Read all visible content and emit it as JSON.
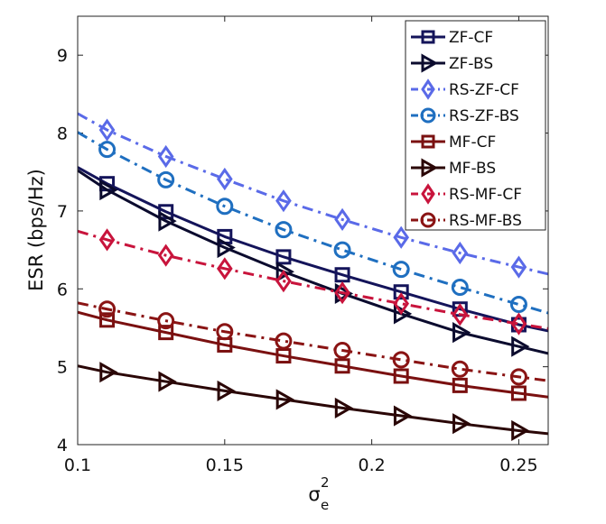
{
  "chart_data": {
    "type": "line",
    "title": "",
    "xlabel_main": "σ",
    "xlabel_sup": "2",
    "xlabel_sub": "e",
    "ylabel": "ESR (bps/Hz)",
    "xlim": [
      0.1,
      0.26
    ],
    "ylim": [
      4,
      9.5
    ],
    "xticks": [
      0.1,
      0.15,
      0.2,
      0.25
    ],
    "xtick_labels": [
      "0.1",
      "0.15",
      "0.2",
      "0.25"
    ],
    "yticks": [
      4,
      5,
      6,
      7,
      8,
      9
    ],
    "ytick_labels": [
      "4",
      "5",
      "6",
      "7",
      "8",
      "9"
    ],
    "legend_position": "top-right",
    "x": [
      0.1,
      0.11,
      0.13,
      0.15,
      0.17,
      0.19,
      0.21,
      0.23,
      0.25,
      0.26
    ],
    "marker_x": [
      0.11,
      0.13,
      0.15,
      0.17,
      0.19,
      0.21,
      0.23,
      0.25
    ],
    "series": [
      {
        "name": "ZF-CF",
        "color": "#14145a",
        "dash": "solid",
        "marker": "square",
        "values": [
          7.56,
          7.35,
          6.99,
          6.67,
          6.41,
          6.18,
          5.96,
          5.74,
          5.54,
          5.46
        ]
      },
      {
        "name": "ZF-BS",
        "color": "#0b0b2e",
        "dash": "solid",
        "marker": "triangle-right",
        "values": [
          7.52,
          7.27,
          6.87,
          6.53,
          6.22,
          5.94,
          5.68,
          5.44,
          5.26,
          5.17
        ]
      },
      {
        "name": "RS-ZF-CF",
        "color": "#5a6ae8",
        "dash": "dashdot",
        "marker": "diamond",
        "values": [
          8.25,
          8.04,
          7.7,
          7.41,
          7.13,
          6.89,
          6.66,
          6.46,
          6.28,
          6.19
        ]
      },
      {
        "name": "RS-ZF-BS",
        "color": "#1f6fc0",
        "dash": "dashdot",
        "marker": "circle",
        "values": [
          8.01,
          7.79,
          7.4,
          7.06,
          6.76,
          6.5,
          6.25,
          6.02,
          5.8,
          5.69
        ]
      },
      {
        "name": "MF-CF",
        "color": "#7a1010",
        "dash": "solid",
        "marker": "square",
        "values": [
          5.7,
          5.6,
          5.44,
          5.28,
          5.14,
          5.01,
          4.88,
          4.76,
          4.66,
          4.61
        ]
      },
      {
        "name": "MF-BS",
        "color": "#2a0606",
        "dash": "solid",
        "marker": "triangle-right",
        "values": [
          5.01,
          4.93,
          4.81,
          4.69,
          4.58,
          4.47,
          4.37,
          4.27,
          4.18,
          4.14
        ]
      },
      {
        "name": "RS-MF-CF",
        "color": "#c8143c",
        "dash": "dashdot",
        "marker": "diamond",
        "values": [
          6.74,
          6.63,
          6.43,
          6.26,
          6.1,
          5.95,
          5.81,
          5.67,
          5.55,
          5.49
        ]
      },
      {
        "name": "RS-MF-BS",
        "color": "#8a1414",
        "dash": "dashdot",
        "marker": "circle",
        "values": [
          5.82,
          5.74,
          5.59,
          5.45,
          5.33,
          5.21,
          5.09,
          4.97,
          4.87,
          4.82
        ]
      }
    ]
  }
}
